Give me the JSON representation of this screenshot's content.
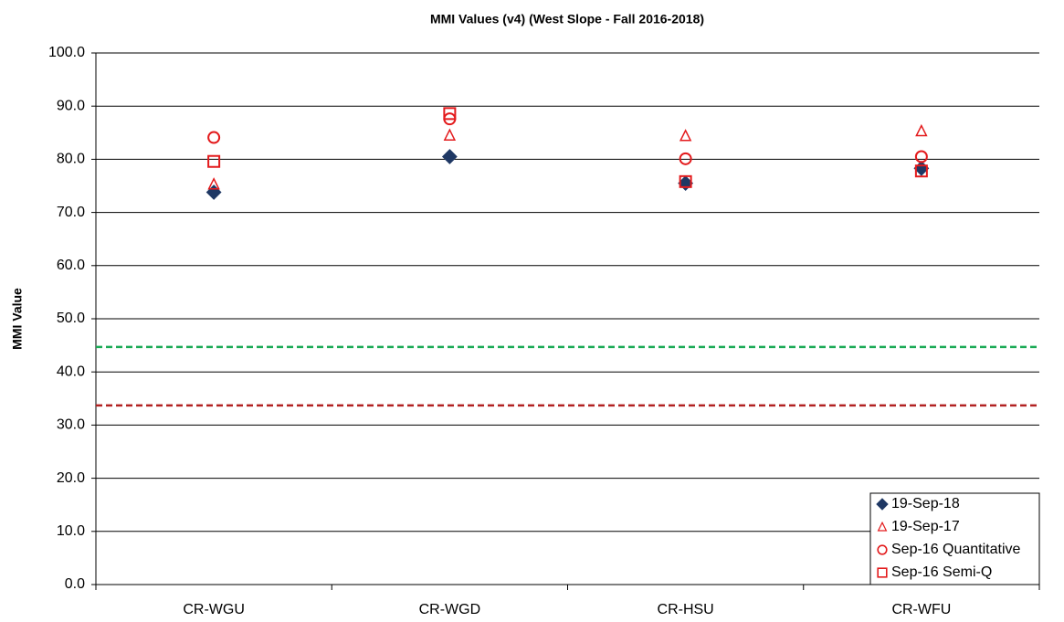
{
  "chart_data": {
    "type": "categorical_scatter",
    "title": "MMI Values (v4)  (West Slope - Fall 2016-2018)",
    "y_label": "MMI Value",
    "categories": [
      "CR-WGU",
      "CR-WGD",
      "CR-HSU",
      "CR-WFU"
    ],
    "series": [
      {
        "name": "19-Sep-18",
        "color": "#1f3864",
        "marker": "diamond",
        "filled": true,
        "values": [
          73.8,
          80.5,
          75.5,
          78.3
        ]
      },
      {
        "name": "19-Sep-17",
        "color": "#e31a1c",
        "marker": "triangle",
        "filled": false,
        "values": [
          75.3,
          84.5,
          84.4,
          85.3
        ]
      },
      {
        "name": "Sep-16 Quantitative",
        "color": "#e31a1c",
        "marker": "circle",
        "filled": false,
        "values": [
          84.1,
          87.6,
          80.1,
          80.5
        ]
      },
      {
        "name": "Sep-16 Semi-Q",
        "color": "#e31a1c",
        "marker": "square",
        "filled": false,
        "values": [
          79.6,
          88.6,
          75.8,
          77.8
        ]
      }
    ],
    "reference_lines": [
      {
        "value": 44.7,
        "color": "#1aaa55"
      },
      {
        "value": 33.7,
        "color": "#b22222"
      }
    ],
    "ylim": [
      0,
      100
    ],
    "yticks": [
      {
        "value": 0,
        "label": "0.0"
      },
      {
        "value": 10,
        "label": "10.0"
      },
      {
        "value": 20,
        "label": "20.0"
      },
      {
        "value": 30,
        "label": "30.0"
      },
      {
        "value": 40,
        "label": "40.0"
      },
      {
        "value": 50,
        "label": "50.0"
      },
      {
        "value": 60,
        "label": "60.0"
      },
      {
        "value": 70,
        "label": "70.0"
      },
      {
        "value": 80,
        "label": "80.0"
      },
      {
        "value": 90,
        "label": "90.0"
      },
      {
        "value": 100,
        "label": "100.0"
      }
    ],
    "grid": true,
    "legend": "bottom-right"
  }
}
